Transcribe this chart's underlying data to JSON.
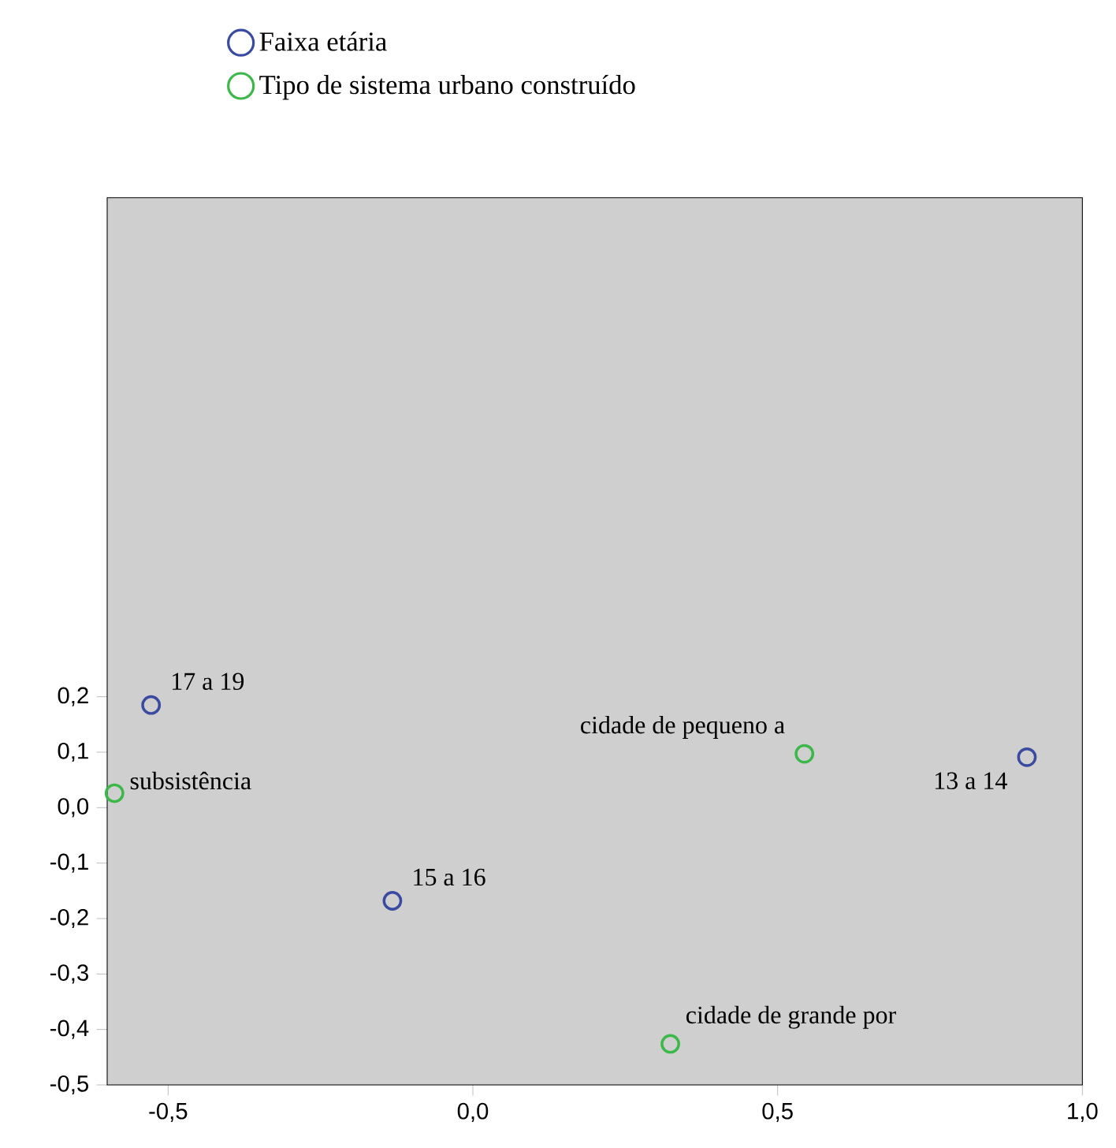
{
  "chart_data": {
    "type": "scatter",
    "legend": "top",
    "marker": "circle",
    "grid": false,
    "xlim": [
      -0.6,
      1.0
    ],
    "ylim": [
      -0.5,
      1.1
    ],
    "xticks": [
      {
        "value": -0.5,
        "label": "-0,5"
      },
      {
        "value": 0.0,
        "label": "0,0"
      },
      {
        "value": 0.5,
        "label": "0,5"
      },
      {
        "value": 1.0,
        "label": "1,0"
      }
    ],
    "yticks": [
      {
        "value": -0.5,
        "label": "-0,5"
      },
      {
        "value": -0.4,
        "label": "-0,4"
      },
      {
        "value": -0.3,
        "label": "-0,3"
      },
      {
        "value": -0.2,
        "label": "-0,2"
      },
      {
        "value": -0.1,
        "label": "-0,1"
      },
      {
        "value": 0.0,
        "label": "0,0"
      },
      {
        "value": 0.1,
        "label": "0,1"
      },
      {
        "value": 0.2,
        "label": "0,2"
      }
    ],
    "series": [
      {
        "name": "Faixa etária",
        "color": "#3a4aa0",
        "x": [
          0.909,
          -0.132,
          -0.528
        ],
        "values": [
          0.091,
          -0.168,
          0.185
        ]
      },
      {
        "name": "Tipo de sistema urbano construído",
        "color": "#3cb84a",
        "x": [
          0.544,
          0.324,
          -0.588
        ],
        "values": [
          0.097,
          -0.426,
          0.026
        ]
      }
    ],
    "annotations": [
      {
        "text": "13 a 14",
        "x": 0.909,
        "y": 0.091
      },
      {
        "text": "15 a 16",
        "x": -0.132,
        "y": -0.168
      },
      {
        "text": "17 a 19",
        "x": -0.528,
        "y": 0.185
      },
      {
        "text": "cidade de pequeno a",
        "x": 0.544,
        "y": 0.097
      },
      {
        "text": "cidade de grande por",
        "x": 0.324,
        "y": -0.426
      },
      {
        "text": "subsistência",
        "x": -0.588,
        "y": 0.026
      }
    ]
  }
}
